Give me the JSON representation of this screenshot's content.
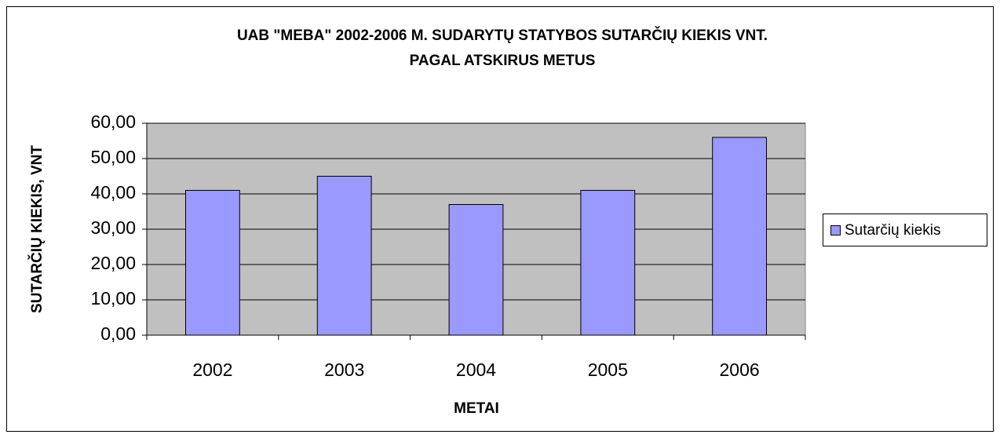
{
  "chart_data": {
    "type": "bar",
    "title": [
      "UAB \"MEBA\" 2002-2006 M. SUDARYTŲ STATYBOS SUTARČIŲ KIEKIS VNT.",
      "PAGAL ATSKIRUS METUS"
    ],
    "x_label": "METAI",
    "y_label": "SUTARČIŲ KIEKIS, VNT",
    "categories": [
      "2002",
      "2003",
      "2004",
      "2005",
      "2006"
    ],
    "series": [
      {
        "name": "Sutarčių kiekis",
        "color": "#9999ff",
        "values": [
          41,
          45,
          37,
          41,
          56
        ]
      }
    ],
    "ylim": [
      0,
      60
    ],
    "yticks": [
      {
        "value": 0,
        "label": "0,00"
      },
      {
        "value": 10,
        "label": "10,00"
      },
      {
        "value": 20,
        "label": "20,00"
      },
      {
        "value": 30,
        "label": "30,00"
      },
      {
        "value": 40,
        "label": "40,00"
      },
      {
        "value": 50,
        "label": "50,00"
      },
      {
        "value": 60,
        "label": "60,00"
      }
    ],
    "grid": true,
    "legend": "right",
    "plot_background": "#c0c0c0"
  }
}
